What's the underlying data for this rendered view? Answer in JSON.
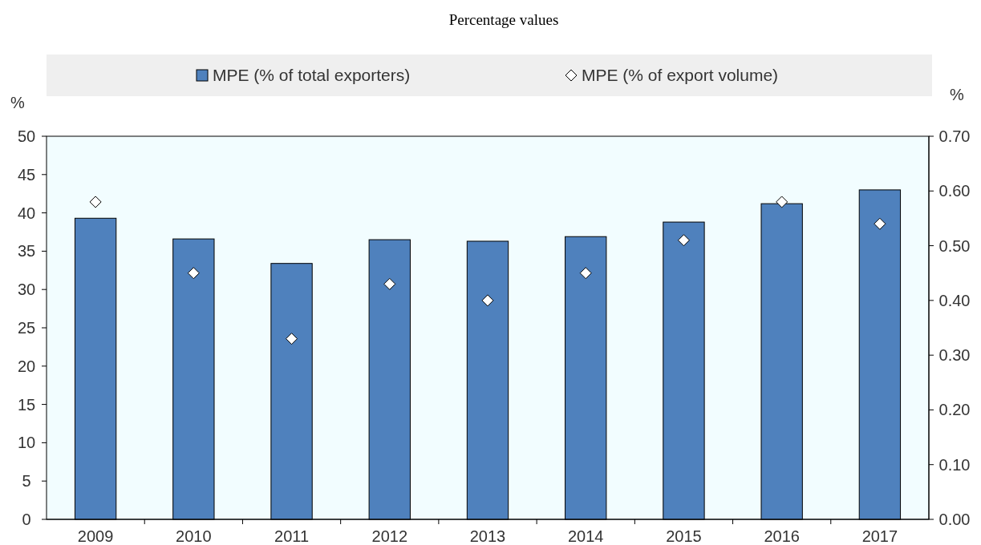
{
  "chart_data": {
    "type": "bar",
    "title": "Percentage values",
    "ylabel": "%",
    "y2label": "%",
    "categories": [
      "2009",
      "2010",
      "2011",
      "2012",
      "2013",
      "2014",
      "2015",
      "2016",
      "2017"
    ],
    "series": [
      {
        "name": "MPE (% of total exporters)",
        "color": "#4f81bd",
        "values": [
          39.3,
          36.6,
          33.4,
          36.5,
          36.3,
          36.9,
          38.8,
          41.2,
          43.0
        ]
      },
      {
        "name": "MPE (% of export volume)",
        "type": "scatter",
        "axis": "y2",
        "color": "#ffffff",
        "marker": "diamond",
        "values": [
          0.58,
          0.45,
          0.33,
          0.43,
          0.4,
          0.45,
          0.51,
          0.58,
          0.54
        ]
      }
    ],
    "ylim": [
      0,
      50
    ],
    "yticks": [
      0,
      5,
      10,
      15,
      20,
      25,
      30,
      35,
      40,
      45,
      50
    ],
    "y2lim": [
      0,
      0.7
    ],
    "y2ticks": [
      {
        "value": 0,
        "label": "0.00"
      },
      {
        "value": 0.1,
        "label": "0.10"
      },
      {
        "value": 0.2,
        "label": "0.20"
      },
      {
        "value": 0.3,
        "label": "0.30"
      },
      {
        "value": 0.4,
        "label": "0.40"
      },
      {
        "value": 0.5,
        "label": "0.50"
      },
      {
        "value": 0.6,
        "label": "0.60"
      },
      {
        "value": 0.7,
        "label": "0.70"
      }
    ],
    "legend": "top",
    "grid": false
  }
}
